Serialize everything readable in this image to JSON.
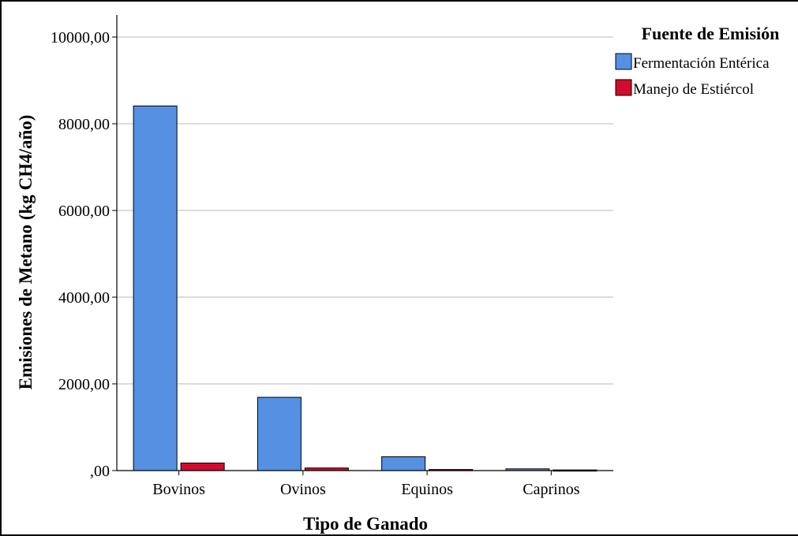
{
  "chart_data": {
    "type": "bar",
    "xlabel": "Tipo de Ganado",
    "ylabel": "Emisiones de Metano (kg CH4/año)",
    "categories": [
      "Bovinos",
      "Ovinos",
      "Equinos",
      "Caprinos"
    ],
    "series": [
      {
        "name": "Fermentación Entérica",
        "color": "#5590e3",
        "values": [
          8410,
          1690,
          320,
          40
        ]
      },
      {
        "name": "Manejo de Estiércol",
        "color": "#d20c2f",
        "values": [
          175,
          60,
          25,
          15
        ]
      }
    ],
    "ylim": [
      0,
      10000
    ],
    "yticks": [
      0,
      2000,
      4000,
      6000,
      8000,
      10000
    ],
    "ytick_labels": [
      ",00",
      "2000,00",
      "4000,00",
      "6000,00",
      "8000,00",
      "10000,00"
    ],
    "grid": true,
    "legend": {
      "title": "Fuente de Emisión",
      "position": "top-right"
    }
  }
}
